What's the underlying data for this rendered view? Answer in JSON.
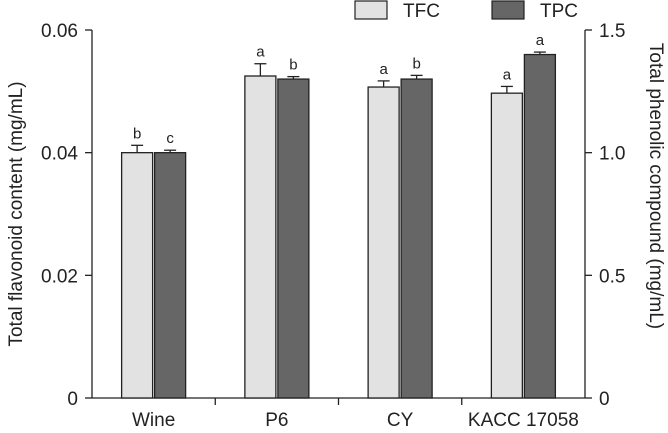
{
  "chart_data": {
    "type": "bar",
    "categories": [
      "Wine",
      "P6",
      "CY",
      "KACC 17058"
    ],
    "series": [
      {
        "name": "TFC",
        "axis": "left",
        "color": "#e2e2e2",
        "values": [
          0.04,
          0.0525,
          0.0507,
          0.0497
        ],
        "errors": [
          0.0012,
          0.002,
          0.001,
          0.0011
        ],
        "letters": [
          "b",
          "a",
          "a",
          "a"
        ]
      },
      {
        "name": "TPC",
        "axis": "right",
        "color": "#666666",
        "values": [
          1.0,
          1.3,
          1.3,
          1.4
        ],
        "errors": [
          0.01,
          0.01,
          0.015,
          0.01
        ],
        "letters": [
          "c",
          "b",
          "b",
          "a"
        ]
      }
    ],
    "ylabel": "Total flavonoid content (mg/mL)",
    "ylabel_right": "Total phenolic compound (mg/mL)",
    "ylim": [
      0,
      0.06
    ],
    "ylim_right": [
      0,
      1.5
    ],
    "yticks": [
      0,
      0.02,
      0.04,
      0.06
    ],
    "yticks_labels": [
      "0",
      "0.02",
      "0.04",
      "0.06"
    ],
    "yticks_right": [
      0,
      0.5,
      1.0,
      1.5
    ],
    "yticks_right_labels": [
      "0",
      "0.5",
      "1.0",
      "1.5"
    ],
    "legend": {
      "position": "top-right",
      "entries": [
        "TFC",
        "TPC"
      ]
    },
    "grid": false
  }
}
